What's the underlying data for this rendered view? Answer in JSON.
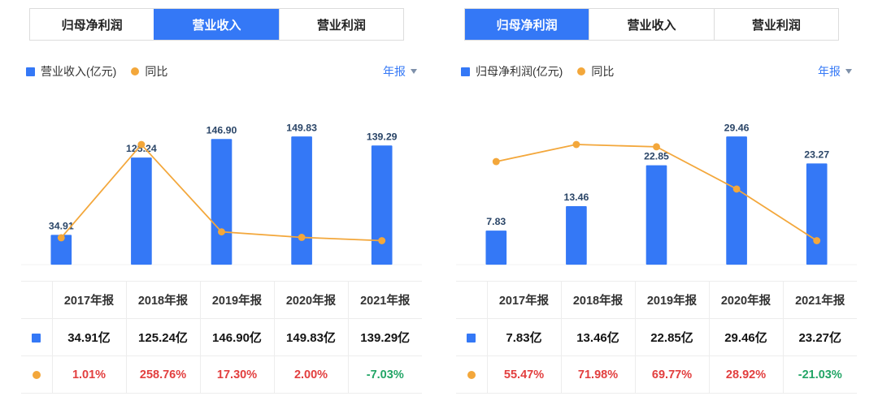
{
  "colors": {
    "bar": "#3478f6",
    "line": "#f3a73b",
    "up": "#e23e3e",
    "down": "#22a566",
    "value_label": "#2b4668"
  },
  "panels": [
    {
      "tabs": [
        {
          "label": "归母净利润",
          "active": false
        },
        {
          "label": "营业收入",
          "active": true
        },
        {
          "label": "营业利润",
          "active": false
        }
      ],
      "legend": {
        "bar": "营业收入(亿元)",
        "line": "同比"
      },
      "period": "年报",
      "table": {
        "headers": [
          "2017年报",
          "2018年报",
          "2019年报",
          "2020年报",
          "2021年报"
        ],
        "values": [
          "34.91亿",
          "125.24亿",
          "146.90亿",
          "149.83亿",
          "139.29亿"
        ],
        "percents": [
          "1.01%",
          "258.76%",
          "17.30%",
          "2.00%",
          "-7.03%"
        ]
      }
    },
    {
      "tabs": [
        {
          "label": "归母净利润",
          "active": true
        },
        {
          "label": "营业收入",
          "active": false
        },
        {
          "label": "营业利润",
          "active": false
        }
      ],
      "legend": {
        "bar": "归母净利润(亿元)",
        "line": "同比"
      },
      "period": "年报",
      "table": {
        "headers": [
          "2017年报",
          "2018年报",
          "2019年报",
          "2020年报",
          "2021年报"
        ],
        "values": [
          "7.83亿",
          "13.46亿",
          "22.85亿",
          "29.46亿",
          "23.27亿"
        ],
        "percents": [
          "55.47%",
          "71.98%",
          "69.77%",
          "28.92%",
          "-21.03%"
        ]
      }
    }
  ],
  "chart_data": [
    {
      "type": "bar",
      "overlay": "line",
      "categories": [
        "2017年报",
        "2018年报",
        "2019年报",
        "2020年报",
        "2021年报"
      ],
      "series": [
        {
          "name": "营业收入(亿元)",
          "type": "bar",
          "values": [
            34.91,
            125.24,
            146.9,
            149.83,
            139.29
          ]
        },
        {
          "name": "同比",
          "type": "line",
          "unit": "%",
          "values": [
            1.01,
            258.76,
            17.3,
            2.0,
            -7.03
          ]
        }
      ],
      "legend_position": "top",
      "grid": false,
      "value_labels": true
    },
    {
      "type": "bar",
      "overlay": "line",
      "categories": [
        "2017年报",
        "2018年报",
        "2019年报",
        "2020年报",
        "2021年报"
      ],
      "series": [
        {
          "name": "归母净利润(亿元)",
          "type": "bar",
          "values": [
            7.83,
            13.46,
            22.85,
            29.46,
            23.27
          ]
        },
        {
          "name": "同比",
          "type": "line",
          "unit": "%",
          "values": [
            55.47,
            71.98,
            69.77,
            28.92,
            -21.03
          ]
        }
      ],
      "legend_position": "top",
      "grid": false,
      "value_labels": true
    }
  ]
}
